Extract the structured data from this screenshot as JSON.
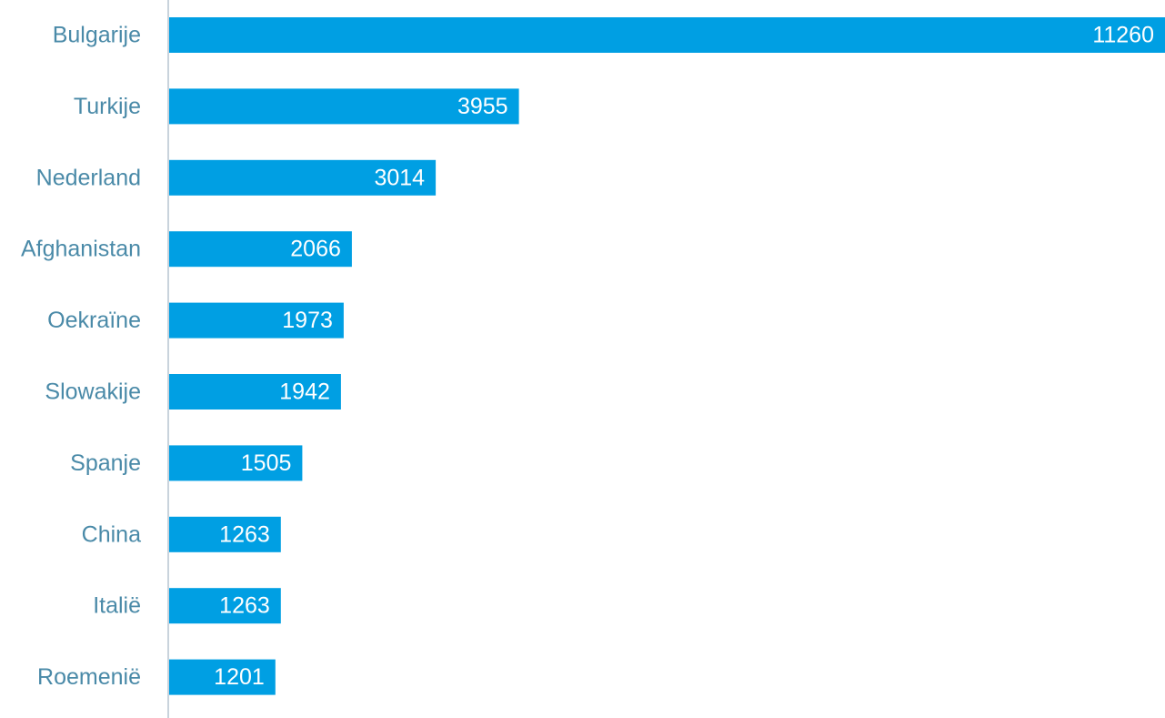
{
  "chart_data": {
    "type": "bar",
    "orientation": "horizontal",
    "categories": [
      "Bulgarije",
      "Turkije",
      "Nederland",
      "Afghanistan",
      "Oekraïne",
      "Slowakije",
      "Spanje",
      "China",
      "Italië",
      "Roemenië"
    ],
    "values": [
      11260,
      3955,
      3014,
      2066,
      1973,
      1942,
      1505,
      1263,
      1263,
      1201
    ],
    "data_labels": [
      "11260",
      "3955",
      "3014",
      "2066",
      "1973",
      "1942",
      "1505",
      "1263",
      "1263",
      "1201"
    ],
    "xlim": [
      0,
      11260
    ],
    "grid": false,
    "legend": "none",
    "colors": {
      "bar": "#009fe3",
      "category_label": "#4a8aa8",
      "data_label": "#ffffff",
      "axis": "#c9d3dc"
    }
  }
}
